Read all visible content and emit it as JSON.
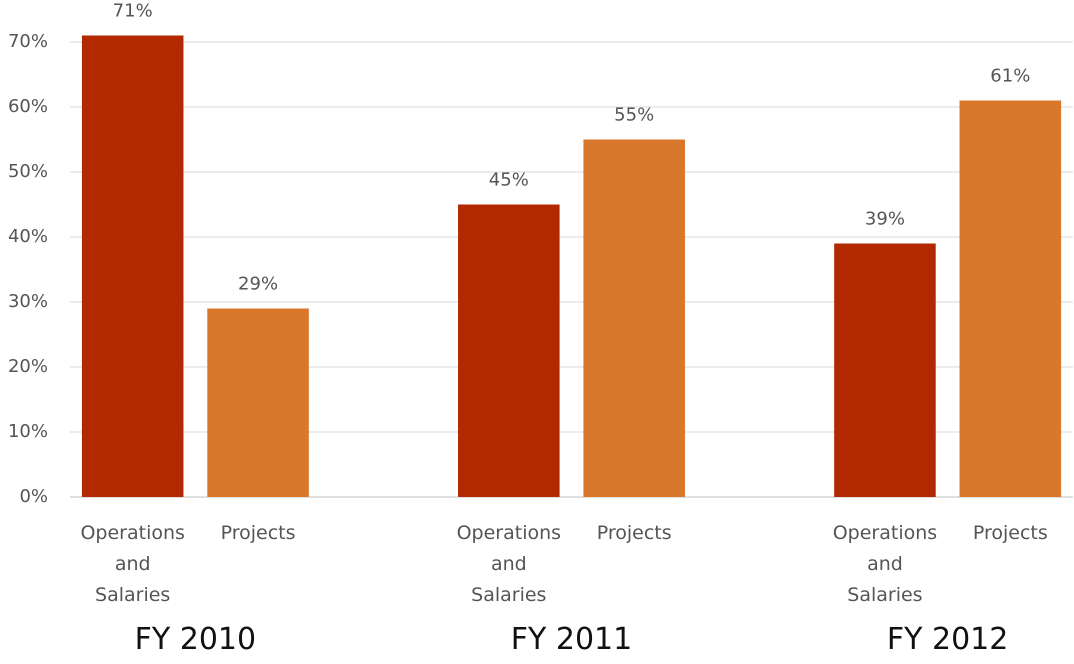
{
  "chart_data": {
    "type": "bar",
    "categories": [
      "FY 2010",
      "FY 2011",
      "FY 2012"
    ],
    "series": [
      {
        "name": "Operations and Salaries",
        "color": "#B22800",
        "values": [
          71,
          45,
          39
        ],
        "value_labels": [
          "71%",
          "45%",
          "39%"
        ]
      },
      {
        "name": "Projects",
        "color": "#D9782D",
        "values": [
          29,
          55,
          61
        ],
        "value_labels": [
          "29%",
          "55%",
          "61%"
        ]
      }
    ],
    "ylim": [
      0,
      70
    ],
    "yticks": [
      {
        "value": 0,
        "label": "0%"
      },
      {
        "value": 10,
        "label": "10%"
      },
      {
        "value": 20,
        "label": "20%"
      },
      {
        "value": 30,
        "label": "30%"
      },
      {
        "value": 40,
        "label": "40%"
      },
      {
        "value": 50,
        "label": "50%"
      },
      {
        "value": 60,
        "label": "60%"
      },
      {
        "value": 70,
        "label": "70%"
      }
    ],
    "grid": true
  }
}
